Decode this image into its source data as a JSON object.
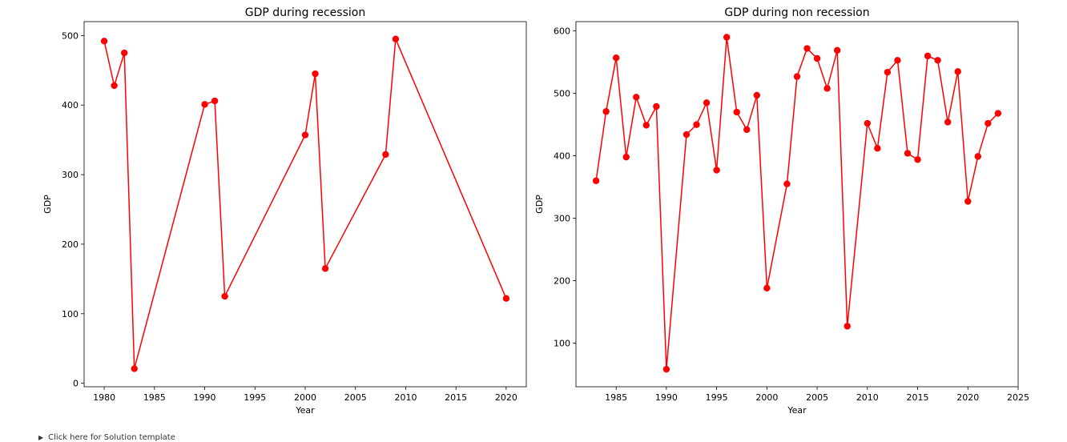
{
  "footer": {
    "text": "Click here for Solution template"
  },
  "chart_data": [
    {
      "type": "line",
      "title": "GDP during recession",
      "xlabel": "Year",
      "ylabel": "GDP",
      "xlim": [
        1978,
        2022
      ],
      "ylim": [
        -5,
        520
      ],
      "xticks": [
        1980,
        1985,
        1990,
        1995,
        2000,
        2005,
        2010,
        2015,
        2020
      ],
      "yticks": [
        0,
        100,
        200,
        300,
        400,
        500
      ],
      "color": "#ff0000",
      "grid": false,
      "x": [
        1980,
        1981,
        1982,
        1983,
        1990,
        1991,
        1992,
        2000,
        2001,
        2002,
        2008,
        2009,
        2020
      ],
      "y": [
        492,
        428,
        475,
        21,
        401,
        406,
        125,
        357,
        445,
        165,
        329,
        495,
        122
      ]
    },
    {
      "type": "line",
      "title": "GDP during non recession",
      "xlabel": "Year",
      "ylabel": "GDP",
      "xlim": [
        1981,
        2025
      ],
      "ylim": [
        30,
        615
      ],
      "xticks": [
        1985,
        1990,
        1995,
        2000,
        2005,
        2010,
        2015,
        2020,
        2025
      ],
      "yticks": [
        100,
        200,
        300,
        400,
        500,
        600
      ],
      "color": "#ff0000",
      "grid": false,
      "x": [
        1983,
        1984,
        1985,
        1986,
        1987,
        1988,
        1989,
        1990,
        1992,
        1993,
        1994,
        1995,
        1996,
        1997,
        1998,
        1999,
        2000,
        2002,
        2003,
        2004,
        2005,
        2006,
        2007,
        2008,
        2010,
        2011,
        2012,
        2013,
        2014,
        2015,
        2016,
        2017,
        2018,
        2019,
        2020,
        2021,
        2022,
        2023
      ],
      "y": [
        360,
        471,
        557,
        398,
        494,
        449,
        479,
        58,
        434,
        450,
        485,
        377,
        590,
        470,
        442,
        497,
        188,
        355,
        527,
        572,
        556,
        508,
        569,
        127,
        452,
        412,
        534,
        553,
        404,
        394,
        560,
        553,
        454,
        535,
        327,
        399,
        452,
        468
      ]
    }
  ]
}
